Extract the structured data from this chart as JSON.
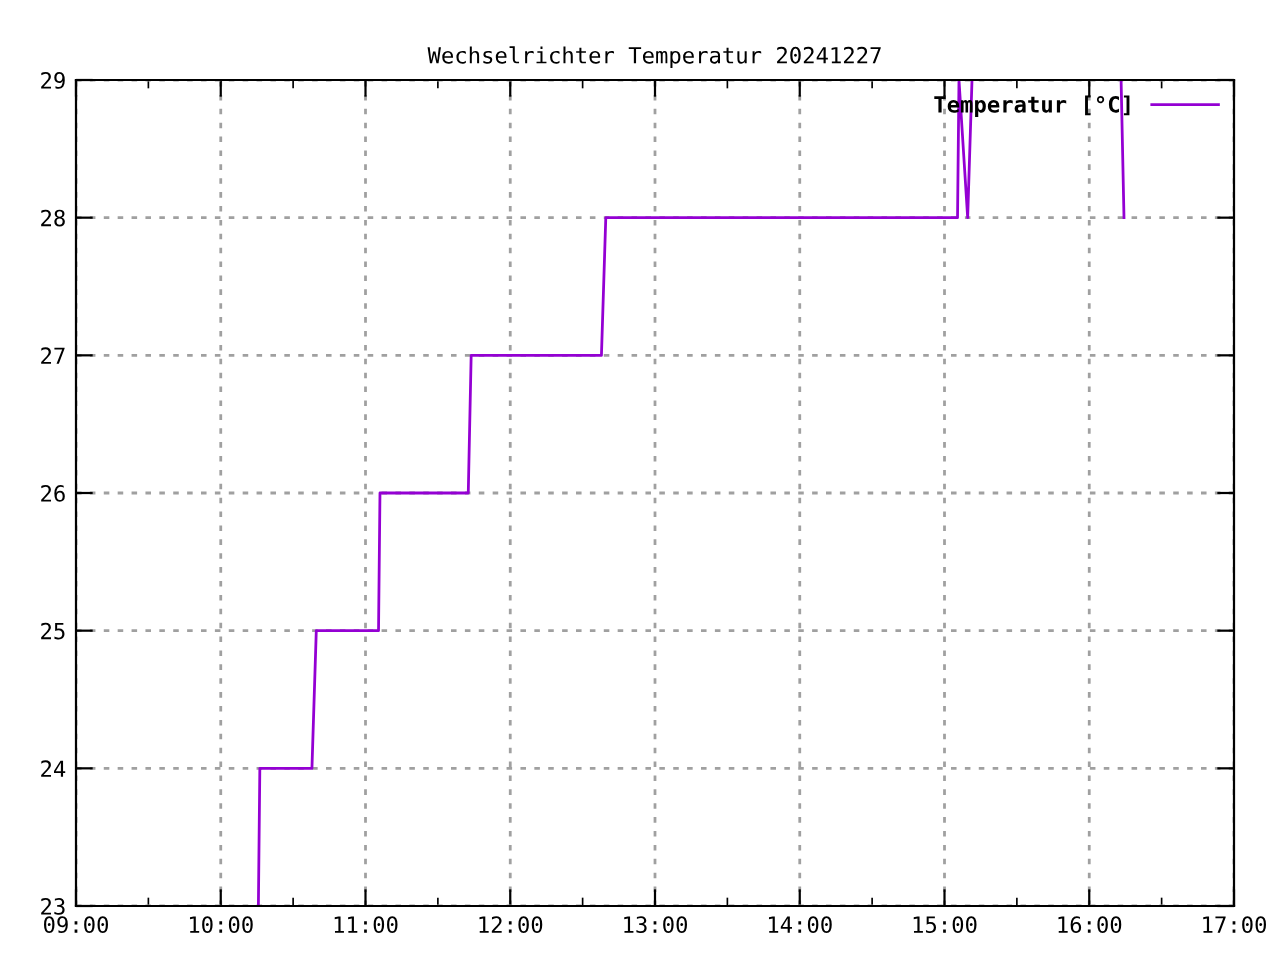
{
  "chart_data": {
    "type": "line",
    "title": "Wechselrichter Temperatur 20241227",
    "series": [
      {
        "name": "Temperatur [°C]",
        "color": "#9400d3",
        "x": [
          10.26,
          10.27,
          10.63,
          10.66,
          11.09,
          11.1,
          11.71,
          11.73,
          12.63,
          12.66,
          15.09,
          15.1,
          15.16,
          15.19,
          null,
          16.22,
          16.24
        ],
        "values": [
          23,
          24,
          24,
          25,
          25,
          26,
          26,
          27,
          27,
          28,
          28,
          29,
          28,
          29,
          null,
          29,
          28
        ]
      }
    ],
    "xlim": [
      9,
      17
    ],
    "xticks": [
      {
        "value": 9,
        "label": "09:00"
      },
      {
        "value": 9.5,
        "label": null
      },
      {
        "value": 10,
        "label": "10:00"
      },
      {
        "value": 10.5,
        "label": null
      },
      {
        "value": 11,
        "label": "11:00"
      },
      {
        "value": 11.5,
        "label": null
      },
      {
        "value": 12,
        "label": "12:00"
      },
      {
        "value": 12.5,
        "label": null
      },
      {
        "value": 13,
        "label": "13:00"
      },
      {
        "value": 13.5,
        "label": null
      },
      {
        "value": 14,
        "label": "14:00"
      },
      {
        "value": 14.5,
        "label": null
      },
      {
        "value": 15,
        "label": "15:00"
      },
      {
        "value": 15.5,
        "label": null
      },
      {
        "value": 16,
        "label": "16:00"
      },
      {
        "value": 16.5,
        "label": null
      },
      {
        "value": 17,
        "label": "17:00"
      }
    ],
    "ylim": [
      23,
      29
    ],
    "yticks": [
      23,
      24,
      25,
      26,
      27,
      28,
      29
    ],
    "grid": true,
    "legend": "top right",
    "marker": "none",
    "line_style": "solid"
  }
}
